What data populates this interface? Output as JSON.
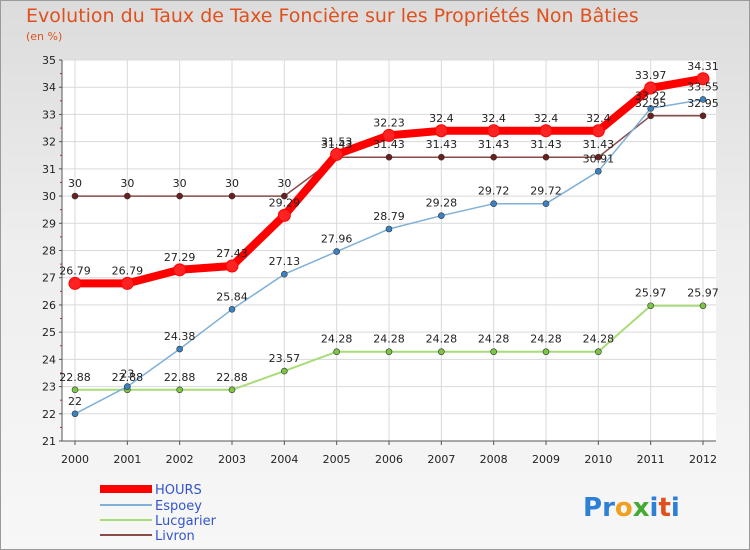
{
  "title": "Evolution du Taux de Taxe Foncière sur les Propriétés Non Bâties",
  "unit_label": "(en %)",
  "logo": {
    "letters": [
      "P",
      "r",
      "o",
      "x",
      "i",
      "t",
      "i"
    ],
    "colors": [
      "#2e7fd6",
      "#2e7fd6",
      "#f0a020",
      "#44aa33",
      "#2e7fd6",
      "#e0501c",
      "#2e7fd6"
    ]
  },
  "chart_data": {
    "type": "line",
    "title": "Evolution du Taux de Taxe Foncière sur les Propriétés Non Bâties",
    "ylabel": "(en %)",
    "xlabel": "",
    "ylim": [
      21,
      35
    ],
    "yticks": [
      "21",
      "22",
      "23",
      "24",
      "25",
      "26",
      "27",
      "28",
      "29",
      "30",
      "31",
      "32",
      "33",
      "34",
      "35"
    ],
    "x": [
      "2000",
      "2001",
      "2002",
      "2003",
      "2004",
      "2005",
      "2006",
      "2007",
      "2008",
      "2009",
      "2010",
      "2011",
      "2012"
    ],
    "grid": true,
    "legend_position": "bottom-left",
    "series": [
      {
        "name": "HOURS",
        "color": "#ff0000",
        "values": [
          26.79,
          26.79,
          27.29,
          27.43,
          29.29,
          31.53,
          32.23,
          32.4,
          32.4,
          32.4,
          32.4,
          33.97,
          34.31
        ],
        "labels": [
          "26.79",
          "26.79",
          "27.29",
          "27.43",
          "29.29",
          "31.53",
          "32.23",
          "32.4",
          "32.4",
          "32.4",
          "32.4",
          "33.97",
          "34.31"
        ]
      },
      {
        "name": "Espoey",
        "color": "#7fb0d8",
        "values": [
          22,
          23,
          24.38,
          25.84,
          27.13,
          27.96,
          28.79,
          29.28,
          29.72,
          29.72,
          30.91,
          33.22,
          33.55
        ],
        "labels": [
          "22",
          "23",
          "24.38",
          "25.84",
          "27.13",
          "27.96",
          "28.79",
          "29.28",
          "29.72",
          "29.72",
          "30.91",
          "33.22",
          "33.55"
        ]
      },
      {
        "name": "Lucgarier",
        "color": "#a8dc78",
        "values": [
          22.88,
          22.88,
          22.88,
          22.88,
          23.57,
          24.28,
          24.28,
          24.28,
          24.28,
          24.28,
          24.28,
          25.97,
          25.97
        ],
        "labels": [
          "22.88",
          "22.88",
          "22.88",
          "22.88",
          "23.57",
          "24.28",
          "24.28",
          "24.28",
          "24.28",
          "24.28",
          "24.28",
          "25.97",
          "25.97"
        ]
      },
      {
        "name": "Livron",
        "color": "#8b4a4a",
        "values": [
          30,
          30,
          30,
          30,
          30,
          31.43,
          31.43,
          31.43,
          31.43,
          31.43,
          31.43,
          32.95,
          32.95
        ],
        "labels": [
          "30",
          "30",
          "30",
          "30",
          "30",
          "31.43",
          "31.43",
          "31.43",
          "31.43",
          "31.43",
          "31.43",
          "32.95",
          "32.95"
        ]
      }
    ]
  }
}
